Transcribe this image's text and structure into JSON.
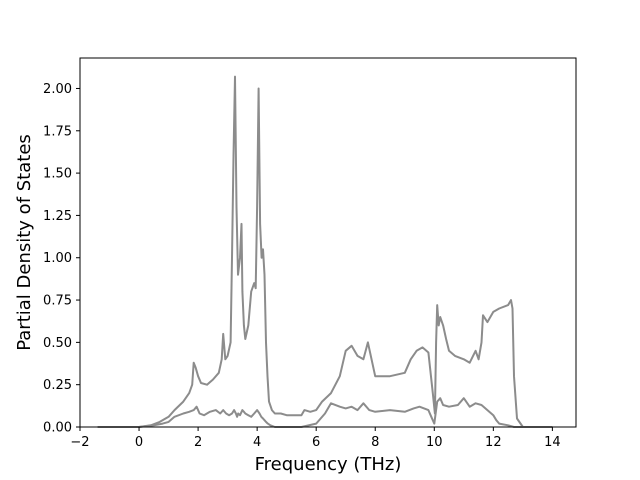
{
  "chart_data": {
    "type": "line",
    "title": "",
    "xlabel": "Frequency (THz)",
    "ylabel": "Partial Density of States",
    "xlim": [
      -2,
      14.8
    ],
    "ylim": [
      0,
      2.18
    ],
    "grid": false,
    "legend": "none",
    "xticks": [
      -2,
      0,
      2,
      4,
      6,
      8,
      10,
      12,
      14
    ],
    "xtick_labels": [
      "−2",
      "0",
      "2",
      "4",
      "6",
      "8",
      "10",
      "12",
      "14"
    ],
    "yticks": [
      0,
      0.25,
      0.5,
      0.75,
      1.0,
      1.25,
      1.5,
      1.75,
      2.0
    ],
    "ytick_labels": [
      "0.00",
      "0.25",
      "0.50",
      "0.75",
      "1.00",
      "1.25",
      "1.50",
      "1.75",
      "2.00"
    ],
    "series": [
      {
        "color": "#8c8c8c",
        "x": [
          -1.4,
          0,
          0.5,
          0.8,
          1.0,
          1.2,
          1.5,
          1.7,
          1.85,
          1.95,
          2.05,
          2.2,
          2.4,
          2.6,
          2.75,
          2.85,
          2.95,
          3.05,
          3.15,
          3.22,
          3.28,
          3.32,
          3.36,
          3.42,
          3.5,
          3.55,
          3.6,
          3.7,
          3.8,
          3.9,
          4.0,
          4.08,
          4.14,
          4.2,
          4.25,
          4.3,
          4.36,
          4.45,
          4.6,
          4.8,
          5.0,
          5.5,
          6.0,
          6.3,
          6.5,
          6.8,
          7.0,
          7.2,
          7.4,
          7.6,
          7.8,
          8.0,
          8.5,
          9.0,
          9.3,
          9.5,
          9.8,
          9.9,
          10.0,
          10.1,
          10.2,
          10.3,
          10.5,
          10.8,
          11.0,
          11.2,
          11.4,
          11.6,
          11.8,
          12.0,
          12.1,
          12.2,
          12.5,
          12.7,
          12.85,
          13.0,
          14.0
        ],
        "values": [
          0,
          0,
          0.01,
          0.02,
          0.03,
          0.06,
          0.08,
          0.09,
          0.1,
          0.12,
          0.08,
          0.07,
          0.09,
          0.1,
          0.08,
          0.1,
          0.08,
          0.07,
          0.08,
          0.1,
          0.08,
          0.06,
          0.08,
          0.07,
          0.1,
          0.09,
          0.08,
          0.07,
          0.06,
          0.08,
          0.1,
          0.08,
          0.06,
          0.05,
          0.04,
          0.03,
          0.02,
          0.01,
          0,
          0,
          0,
          0,
          0.02,
          0.08,
          0.14,
          0.12,
          0.11,
          0.12,
          0.1,
          0.14,
          0.1,
          0.09,
          0.1,
          0.09,
          0.11,
          0.12,
          0.1,
          0.06,
          0.02,
          0.15,
          0.17,
          0.13,
          0.12,
          0.13,
          0.17,
          0.12,
          0.14,
          0.13,
          0.1,
          0.07,
          0.04,
          0.02,
          0.01,
          0,
          0,
          0,
          0
        ]
      },
      {
        "color": "#8c8c8c",
        "x": [
          -1.4,
          -0.2,
          0,
          0.4,
          0.7,
          1.0,
          1.2,
          1.5,
          1.7,
          1.8,
          1.85,
          1.92,
          2.0,
          2.1,
          2.3,
          2.5,
          2.7,
          2.8,
          2.85,
          2.92,
          3.0,
          3.1,
          3.15,
          3.2,
          3.25,
          3.3,
          3.35,
          3.42,
          3.47,
          3.5,
          3.55,
          3.6,
          3.7,
          3.8,
          3.9,
          3.95,
          4.0,
          4.05,
          4.1,
          4.15,
          4.2,
          4.25,
          4.3,
          4.35,
          4.4,
          4.5,
          4.6,
          4.8,
          5.0,
          5.3,
          5.5,
          5.6,
          5.8,
          6.0,
          6.2,
          6.5,
          6.8,
          7.0,
          7.2,
          7.4,
          7.6,
          7.75,
          8.0,
          8.5,
          9.0,
          9.2,
          9.4,
          9.6,
          9.8,
          9.95,
          10.02,
          10.06,
          10.1,
          10.15,
          10.2,
          10.3,
          10.4,
          10.5,
          10.7,
          11.0,
          11.2,
          11.4,
          11.5,
          11.6,
          11.65,
          11.8,
          12.0,
          12.2,
          12.5,
          12.6,
          12.65,
          12.7,
          12.8,
          13.0,
          14.0
        ],
        "values": [
          0,
          0,
          0,
          0.01,
          0.03,
          0.06,
          0.1,
          0.15,
          0.2,
          0.25,
          0.38,
          0.35,
          0.3,
          0.26,
          0.25,
          0.28,
          0.32,
          0.4,
          0.55,
          0.4,
          0.42,
          0.5,
          1.0,
          1.6,
          2.07,
          1.3,
          0.9,
          1.0,
          1.2,
          0.8,
          0.6,
          0.52,
          0.6,
          0.8,
          0.85,
          0.82,
          1.3,
          2.0,
          1.2,
          1.0,
          1.05,
          0.9,
          0.5,
          0.3,
          0.15,
          0.1,
          0.08,
          0.08,
          0.07,
          0.07,
          0.07,
          0.1,
          0.09,
          0.1,
          0.15,
          0.2,
          0.3,
          0.45,
          0.48,
          0.42,
          0.4,
          0.5,
          0.3,
          0.3,
          0.32,
          0.4,
          0.45,
          0.47,
          0.44,
          0.2,
          0.08,
          0.5,
          0.72,
          0.6,
          0.65,
          0.6,
          0.52,
          0.45,
          0.42,
          0.4,
          0.38,
          0.45,
          0.4,
          0.5,
          0.66,
          0.62,
          0.68,
          0.7,
          0.72,
          0.75,
          0.7,
          0.3,
          0.05,
          0,
          0
        ]
      }
    ]
  }
}
